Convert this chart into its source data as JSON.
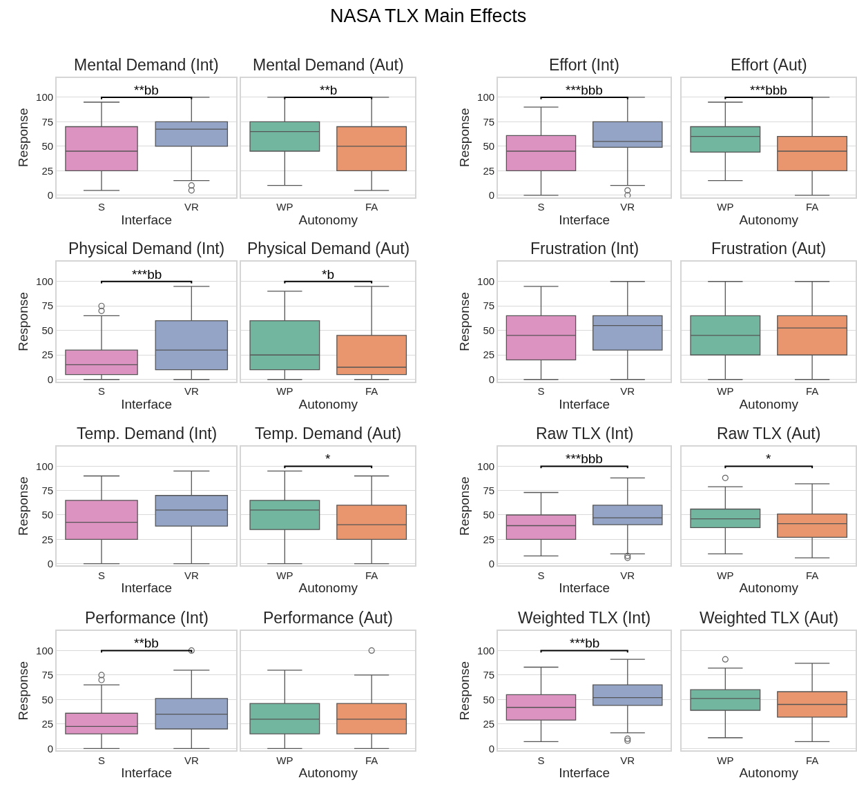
{
  "chart_data": [
    {
      "type": "box",
      "title": "Mental Demand (Int)",
      "xlabel": "Interface",
      "ylabel": "Response",
      "categories": [
        "S",
        "VR"
      ],
      "colors": [
        "#dc93c1",
        "#93a4c6"
      ],
      "boxes": [
        {
          "low": 5,
          "q1": 25,
          "median": 45,
          "q3": 70,
          "high": 95
        },
        {
          "low": 15,
          "q1": 50,
          "median": 67.5,
          "q3": 75,
          "high": 100,
          "outliers": [
            10,
            5
          ]
        }
      ],
      "ylim": [
        -2,
        120
      ],
      "yticks": [
        0,
        25,
        50,
        75,
        100
      ],
      "grid": "y",
      "annotations": [
        "NASA TLX Main Effects",
        "**bb"
      ]
    },
    {
      "type": "box",
      "title": "Mental Demand (Aut)",
      "xlabel": "Autonomy",
      "categories": [
        "WP",
        "FA"
      ],
      "colors": [
        "#72b6a0",
        "#e9966e"
      ],
      "boxes": [
        {
          "low": 10,
          "q1": 45,
          "median": 65,
          "q3": 75,
          "high": 100
        },
        {
          "low": 5,
          "q1": 25,
          "median": 50,
          "q3": 70,
          "high": 100
        }
      ],
      "ylim": [
        -2,
        120
      ],
      "yticks": [
        0,
        25,
        50,
        75,
        100
      ],
      "grid": "y",
      "tick_labels": "x",
      "annotations": [
        "**b"
      ]
    },
    {
      "type": "box",
      "title": "Effort (Int)",
      "xlabel": "Interface",
      "ylabel": "Response",
      "categories": [
        "S",
        "VR"
      ],
      "colors": [
        "#dc93c1",
        "#93a4c6"
      ],
      "boxes": [
        {
          "low": 0,
          "q1": 25,
          "median": 45,
          "q3": 61,
          "high": 90
        },
        {
          "low": 10,
          "q1": 49,
          "median": 55,
          "q3": 75,
          "high": 100,
          "outliers": [
            5,
            0
          ]
        }
      ],
      "ylim": [
        -2,
        120
      ],
      "yticks": [
        0,
        25,
        50,
        75,
        100
      ],
      "grid": "y",
      "annotations": [
        "***bbb"
      ]
    },
    {
      "type": "box",
      "title": "Effort (Aut)",
      "xlabel": "Autonomy",
      "categories": [
        "WP",
        "FA"
      ],
      "colors": [
        "#72b6a0",
        "#e9966e"
      ],
      "boxes": [
        {
          "low": 15,
          "q1": 44,
          "median": 60,
          "q3": 70,
          "high": 95
        },
        {
          "low": 0,
          "q1": 25,
          "median": 45,
          "q3": 60,
          "high": 100
        }
      ],
      "ylim": [
        -2,
        120
      ],
      "yticks": [
        0,
        25,
        50,
        75,
        100
      ],
      "grid": "y",
      "tick_labels": "x",
      "annotations": [
        "***bbb"
      ]
    },
    {
      "type": "box",
      "title": "Physical Demand (Int)",
      "xlabel": "Interface",
      "ylabel": "Response",
      "categories": [
        "S",
        "VR"
      ],
      "colors": [
        "#dc93c1",
        "#93a4c6"
      ],
      "boxes": [
        {
          "low": 0,
          "q1": 5,
          "median": 15,
          "q3": 30,
          "high": 65,
          "outliers": [
            70,
            75
          ]
        },
        {
          "low": 0,
          "q1": 10,
          "median": 30,
          "q3": 60,
          "high": 95
        }
      ],
      "ylim": [
        -2,
        120
      ],
      "yticks": [
        0,
        25,
        50,
        75,
        100
      ],
      "grid": "y",
      "annotations": [
        "***bb"
      ]
    },
    {
      "type": "box",
      "title": "Physical Demand (Aut)",
      "xlabel": "Autonomy",
      "categories": [
        "WP",
        "FA"
      ],
      "colors": [
        "#72b6a0",
        "#e9966e"
      ],
      "boxes": [
        {
          "low": 0,
          "q1": 10,
          "median": 25,
          "q3": 60,
          "high": 90
        },
        {
          "low": 0,
          "q1": 5,
          "median": 12.5,
          "q3": 45,
          "high": 95
        }
      ],
      "ylim": [
        -2,
        120
      ],
      "yticks": [
        0,
        25,
        50,
        75,
        100
      ],
      "grid": "y",
      "tick_labels": "x",
      "annotations": [
        "*b"
      ]
    },
    {
      "type": "box",
      "title": "Frustration (Int)",
      "xlabel": "Interface",
      "ylabel": "Response",
      "categories": [
        "S",
        "VR"
      ],
      "colors": [
        "#dc93c1",
        "#93a4c6"
      ],
      "boxes": [
        {
          "low": 0,
          "q1": 20,
          "median": 45,
          "q3": 65,
          "high": 95
        },
        {
          "low": 0,
          "q1": 30,
          "median": 55,
          "q3": 65,
          "high": 100
        }
      ],
      "ylim": [
        -2,
        120
      ],
      "yticks": [
        0,
        25,
        50,
        75,
        100
      ],
      "grid": "y"
    },
    {
      "type": "box",
      "title": "Frustration (Aut)",
      "xlabel": "Autonomy",
      "categories": [
        "WP",
        "FA"
      ],
      "colors": [
        "#72b6a0",
        "#e9966e"
      ],
      "boxes": [
        {
          "low": 0,
          "q1": 25,
          "median": 45,
          "q3": 65,
          "high": 100
        },
        {
          "low": 0,
          "q1": 25,
          "median": 52.5,
          "q3": 65,
          "high": 100
        }
      ],
      "ylim": [
        -2,
        120
      ],
      "yticks": [
        0,
        25,
        50,
        75,
        100
      ],
      "grid": "y",
      "tick_labels": "x"
    },
    {
      "type": "box",
      "title": "Temp. Demand (Int)",
      "xlabel": "Interface",
      "ylabel": "Response",
      "categories": [
        "S",
        "VR"
      ],
      "colors": [
        "#dc93c1",
        "#93a4c6"
      ],
      "boxes": [
        {
          "low": 0,
          "q1": 25,
          "median": 42.5,
          "q3": 65,
          "high": 90
        },
        {
          "low": 0,
          "q1": 38.5,
          "median": 55,
          "q3": 70,
          "high": 95
        }
      ],
      "ylim": [
        -2,
        120
      ],
      "yticks": [
        0,
        25,
        50,
        75,
        100
      ],
      "grid": "y"
    },
    {
      "type": "box",
      "title": "Temp. Demand (Aut)",
      "xlabel": "Autonomy",
      "categories": [
        "WP",
        "FA"
      ],
      "colors": [
        "#72b6a0",
        "#e9966e"
      ],
      "boxes": [
        {
          "low": 0,
          "q1": 35,
          "median": 55,
          "q3": 65,
          "high": 95
        },
        {
          "low": 0,
          "q1": 25,
          "median": 40,
          "q3": 60,
          "high": 90
        }
      ],
      "ylim": [
        -2,
        120
      ],
      "yticks": [
        0,
        25,
        50,
        75,
        100
      ],
      "grid": "y",
      "tick_labels": "x",
      "annotations": [
        "*"
      ]
    },
    {
      "type": "box",
      "title": "Raw TLX (Int)",
      "xlabel": "Interface",
      "ylabel": "Response",
      "categories": [
        "S",
        "VR"
      ],
      "colors": [
        "#dc93c1",
        "#93a4c6"
      ],
      "boxes": [
        {
          "low": 8,
          "q1": 25,
          "median": 39,
          "q3": 50,
          "high": 73
        },
        {
          "low": 10,
          "q1": 40,
          "median": 47,
          "q3": 60,
          "high": 88,
          "outliers": [
            8,
            6
          ]
        }
      ],
      "ylim": [
        -2,
        120
      ],
      "yticks": [
        0,
        25,
        50,
        75,
        100
      ],
      "grid": "y",
      "annotations": [
        "***bbb"
      ]
    },
    {
      "type": "box",
      "title": "Raw TLX (Aut)",
      "xlabel": "Autonomy",
      "categories": [
        "WP",
        "FA"
      ],
      "colors": [
        "#72b6a0",
        "#e9966e"
      ],
      "boxes": [
        {
          "low": 10,
          "q1": 37,
          "median": 46,
          "q3": 56,
          "high": 79,
          "outliers": [
            88
          ]
        },
        {
          "low": 6,
          "q1": 27,
          "median": 41,
          "q3": 51,
          "high": 82
        }
      ],
      "ylim": [
        -2,
        120
      ],
      "yticks": [
        0,
        25,
        50,
        75,
        100
      ],
      "grid": "y",
      "tick_labels": "x",
      "annotations": [
        "*"
      ]
    },
    {
      "type": "box",
      "title": "Performance (Int)",
      "xlabel": "Interface",
      "ylabel": "Response",
      "categories": [
        "S",
        "VR"
      ],
      "colors": [
        "#dc93c1",
        "#93a4c6"
      ],
      "boxes": [
        {
          "low": 0,
          "q1": 15,
          "median": 22.5,
          "q3": 36,
          "high": 65,
          "outliers": [
            70,
            75
          ]
        },
        {
          "low": 0,
          "q1": 20,
          "median": 35,
          "q3": 51,
          "high": 80,
          "outliers": [
            100
          ]
        }
      ],
      "ylim": [
        -2,
        120
      ],
      "yticks": [
        0,
        25,
        50,
        75,
        100
      ],
      "grid": "y",
      "annotations": [
        "**bb"
      ]
    },
    {
      "type": "box",
      "title": "Performance (Aut)",
      "xlabel": "Autonomy",
      "categories": [
        "WP",
        "FA"
      ],
      "colors": [
        "#72b6a0",
        "#e9966e"
      ],
      "boxes": [
        {
          "low": 0,
          "q1": 15,
          "median": 30,
          "q3": 46,
          "high": 80
        },
        {
          "low": 0,
          "q1": 15,
          "median": 30,
          "q3": 46,
          "high": 75,
          "outliers": [
            100
          ]
        }
      ],
      "ylim": [
        -2,
        120
      ],
      "yticks": [
        0,
        25,
        50,
        75,
        100
      ],
      "grid": "y",
      "tick_labels": "x"
    },
    {
      "type": "box",
      "title": "Weighted TLX (Int)",
      "xlabel": "Interface",
      "ylabel": "Response",
      "categories": [
        "S",
        "VR"
      ],
      "colors": [
        "#dc93c1",
        "#93a4c6"
      ],
      "boxes": [
        {
          "low": 7,
          "q1": 29,
          "median": 42,
          "q3": 55,
          "high": 83
        },
        {
          "low": 16,
          "q1": 44,
          "median": 52,
          "q3": 65,
          "high": 91,
          "outliers": [
            10,
            8
          ]
        }
      ],
      "ylim": [
        -2,
        120
      ],
      "yticks": [
        0,
        25,
        50,
        75,
        100
      ],
      "grid": "y",
      "annotations": [
        "***bb"
      ]
    },
    {
      "type": "box",
      "title": "Weighted TLX (Aut)",
      "xlabel": "Autonomy",
      "categories": [
        "WP",
        "FA"
      ],
      "colors": [
        "#72b6a0",
        "#e9966e"
      ],
      "boxes": [
        {
          "low": 11,
          "q1": 39,
          "median": 51,
          "q3": 60,
          "high": 82,
          "outliers": [
            91
          ]
        },
        {
          "low": 7,
          "q1": 32,
          "median": 45,
          "q3": 58,
          "high": 87
        }
      ],
      "ylim": [
        -2,
        120
      ],
      "yticks": [
        0,
        25,
        50,
        75,
        100
      ],
      "grid": "y",
      "tick_labels": "x"
    }
  ]
}
